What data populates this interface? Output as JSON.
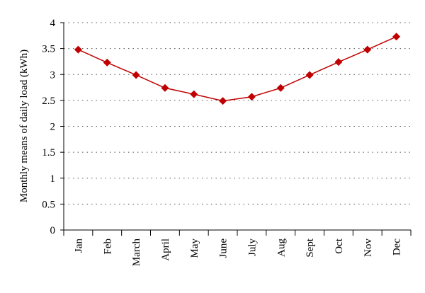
{
  "chart_data": {
    "type": "line",
    "y_label": "Monthly means of daily load (kWh)",
    "categories": [
      "Jan",
      "Feb",
      "March",
      "April",
      "May",
      "June",
      "July",
      "Aug",
      "Sept",
      "Oct",
      "Nov",
      "Dec"
    ],
    "values": [
      3.48,
      3.23,
      2.99,
      2.74,
      2.62,
      2.49,
      2.57,
      2.74,
      2.99,
      3.24,
      3.48,
      3.73
    ],
    "color": "#c00000",
    "ylim": [
      0,
      4
    ],
    "yticks": [
      0,
      0.5,
      1,
      1.5,
      2,
      2.5,
      3,
      3.5,
      4
    ],
    "grid": true
  }
}
